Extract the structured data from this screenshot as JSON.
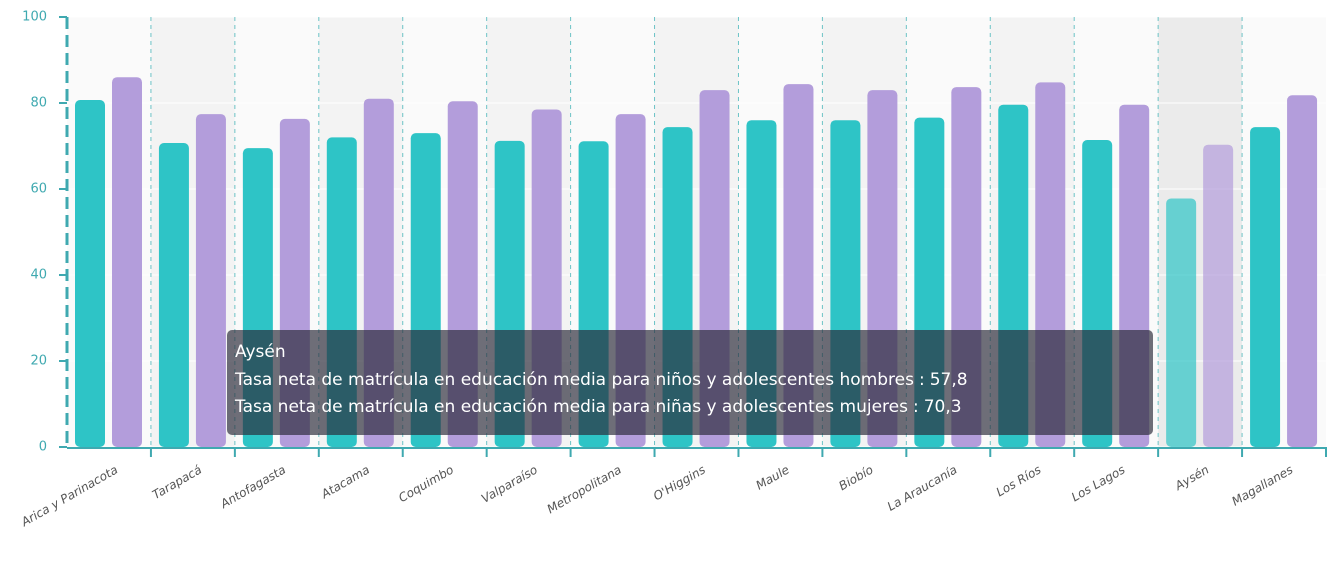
{
  "chart_data": {
    "type": "bar",
    "categories": [
      "Arica y Parinacota",
      "Tarapacá",
      "Antofagasta",
      "Atacama",
      "Coquimbo",
      "Valparaíso",
      "Metropolitana",
      "O'Higgins",
      "Maule",
      "Biobío",
      "La Araucanía",
      "Los Ríos",
      "Los Lagos",
      "Aysén",
      "Magallanes"
    ],
    "series": [
      {
        "name": "Tasa neta de matrícula en educación media para niños y adolescentes hombres",
        "color": "#2ec4c6",
        "values": [
          80.7,
          70.7,
          69.5,
          72.0,
          73.0,
          71.2,
          71.1,
          74.4,
          76.0,
          76.0,
          76.6,
          79.6,
          71.4,
          57.8,
          74.4
        ],
        "value_labels": [
          null,
          null,
          null,
          null,
          null,
          null,
          null,
          null,
          null,
          null,
          null,
          null,
          null,
          "57,8",
          null
        ]
      },
      {
        "name": "Tasa neta de matrícula en educación media para niñas y adolescentes mujeres",
        "color": "#b39ddb",
        "values": [
          86.0,
          77.4,
          76.3,
          81.0,
          80.4,
          78.5,
          77.4,
          83.0,
          84.4,
          83.0,
          83.7,
          84.8,
          79.6,
          70.3,
          81.8
        ],
        "value_labels": [
          null,
          null,
          null,
          null,
          null,
          null,
          null,
          null,
          null,
          null,
          null,
          null,
          null,
          "70,3",
          null
        ]
      }
    ],
    "ylim": [
      0,
      100
    ],
    "yticks": [
      0,
      20,
      40,
      60,
      80,
      100
    ],
    "grid": true,
    "tooltip": {
      "separator": ":"
    }
  }
}
